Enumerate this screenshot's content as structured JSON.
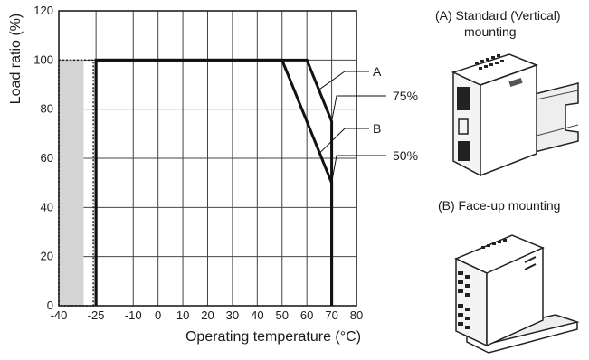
{
  "chart_data": {
    "type": "line",
    "xlabel": "Operating temperature (°C)",
    "ylabel": "Load ratio (%)",
    "xlim": [
      -40,
      80
    ],
    "ylim": [
      0,
      120
    ],
    "x_ticks": [
      "-40",
      "-25",
      "-10",
      "0",
      "10",
      "20",
      "30",
      "40",
      "50",
      "60",
      "70",
      "80"
    ],
    "y_ticks": [
      "0",
      "20",
      "40",
      "60",
      "80",
      "100",
      "120"
    ],
    "grid": true,
    "series": [
      {
        "name": "A",
        "x": [
          -25,
          -25,
          60,
          70,
          70
        ],
        "y": [
          0,
          100,
          100,
          75,
          0
        ],
        "callout_label": "75%",
        "callout_y": 75
      },
      {
        "name": "B",
        "x": [
          -25,
          -25,
          50,
          70,
          70
        ],
        "y": [
          0,
          100,
          100,
          50,
          0
        ],
        "callout_label": "50%",
        "callout_y": 50
      }
    ],
    "shaded_region": {
      "x": [
        -40,
        -30
      ],
      "y": [
        0,
        100
      ],
      "color": "#d4d4d4",
      "border": "dotted"
    }
  },
  "mounting": {
    "a_caption_line1": "(A) Standard (Vertical)",
    "a_caption_line2": "mounting",
    "b_caption": "(B) Face-up mounting"
  },
  "colors": {
    "line": "#111111",
    "grid": "#444444",
    "shade": "#d4d4d4"
  }
}
